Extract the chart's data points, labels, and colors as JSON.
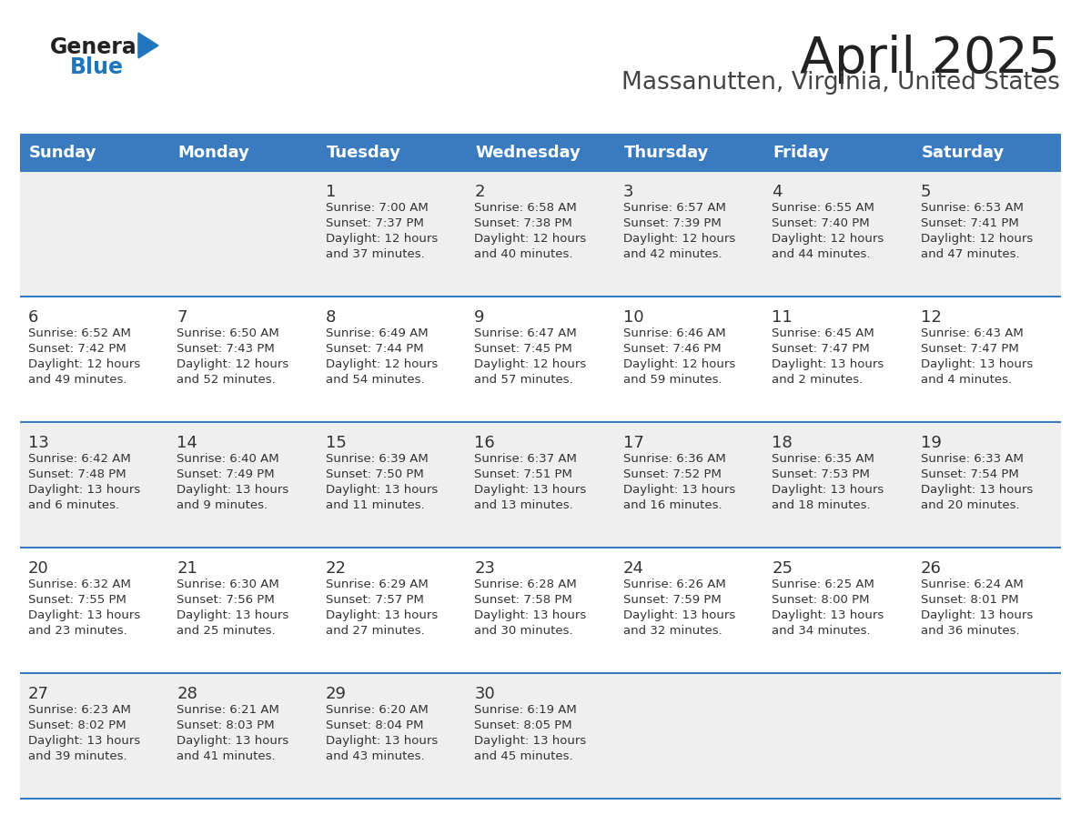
{
  "title": "April 2025",
  "subtitle": "Massanutten, Virginia, United States",
  "header_color": "#3A7BBF",
  "header_text_color": "#FFFFFF",
  "days_of_week": [
    "Sunday",
    "Monday",
    "Tuesday",
    "Wednesday",
    "Thursday",
    "Friday",
    "Saturday"
  ],
  "row_bg_even": "#EFEFEF",
  "row_bg_odd": "#FFFFFF",
  "separator_color": "#3A7BBF",
  "text_color": "#333333",
  "calendar_data": [
    [
      {
        "day": "",
        "lines": []
      },
      {
        "day": "",
        "lines": []
      },
      {
        "day": "1",
        "lines": [
          "Sunrise: 7:00 AM",
          "Sunset: 7:37 PM",
          "Daylight: 12 hours",
          "and 37 minutes."
        ]
      },
      {
        "day": "2",
        "lines": [
          "Sunrise: 6:58 AM",
          "Sunset: 7:38 PM",
          "Daylight: 12 hours",
          "and 40 minutes."
        ]
      },
      {
        "day": "3",
        "lines": [
          "Sunrise: 6:57 AM",
          "Sunset: 7:39 PM",
          "Daylight: 12 hours",
          "and 42 minutes."
        ]
      },
      {
        "day": "4",
        "lines": [
          "Sunrise: 6:55 AM",
          "Sunset: 7:40 PM",
          "Daylight: 12 hours",
          "and 44 minutes."
        ]
      },
      {
        "day": "5",
        "lines": [
          "Sunrise: 6:53 AM",
          "Sunset: 7:41 PM",
          "Daylight: 12 hours",
          "and 47 minutes."
        ]
      }
    ],
    [
      {
        "day": "6",
        "lines": [
          "Sunrise: 6:52 AM",
          "Sunset: 7:42 PM",
          "Daylight: 12 hours",
          "and 49 minutes."
        ]
      },
      {
        "day": "7",
        "lines": [
          "Sunrise: 6:50 AM",
          "Sunset: 7:43 PM",
          "Daylight: 12 hours",
          "and 52 minutes."
        ]
      },
      {
        "day": "8",
        "lines": [
          "Sunrise: 6:49 AM",
          "Sunset: 7:44 PM",
          "Daylight: 12 hours",
          "and 54 minutes."
        ]
      },
      {
        "day": "9",
        "lines": [
          "Sunrise: 6:47 AM",
          "Sunset: 7:45 PM",
          "Daylight: 12 hours",
          "and 57 minutes."
        ]
      },
      {
        "day": "10",
        "lines": [
          "Sunrise: 6:46 AM",
          "Sunset: 7:46 PM",
          "Daylight: 12 hours",
          "and 59 minutes."
        ]
      },
      {
        "day": "11",
        "lines": [
          "Sunrise: 6:45 AM",
          "Sunset: 7:47 PM",
          "Daylight: 13 hours",
          "and 2 minutes."
        ]
      },
      {
        "day": "12",
        "lines": [
          "Sunrise: 6:43 AM",
          "Sunset: 7:47 PM",
          "Daylight: 13 hours",
          "and 4 minutes."
        ]
      }
    ],
    [
      {
        "day": "13",
        "lines": [
          "Sunrise: 6:42 AM",
          "Sunset: 7:48 PM",
          "Daylight: 13 hours",
          "and 6 minutes."
        ]
      },
      {
        "day": "14",
        "lines": [
          "Sunrise: 6:40 AM",
          "Sunset: 7:49 PM",
          "Daylight: 13 hours",
          "and 9 minutes."
        ]
      },
      {
        "day": "15",
        "lines": [
          "Sunrise: 6:39 AM",
          "Sunset: 7:50 PM",
          "Daylight: 13 hours",
          "and 11 minutes."
        ]
      },
      {
        "day": "16",
        "lines": [
          "Sunrise: 6:37 AM",
          "Sunset: 7:51 PM",
          "Daylight: 13 hours",
          "and 13 minutes."
        ]
      },
      {
        "day": "17",
        "lines": [
          "Sunrise: 6:36 AM",
          "Sunset: 7:52 PM",
          "Daylight: 13 hours",
          "and 16 minutes."
        ]
      },
      {
        "day": "18",
        "lines": [
          "Sunrise: 6:35 AM",
          "Sunset: 7:53 PM",
          "Daylight: 13 hours",
          "and 18 minutes."
        ]
      },
      {
        "day": "19",
        "lines": [
          "Sunrise: 6:33 AM",
          "Sunset: 7:54 PM",
          "Daylight: 13 hours",
          "and 20 minutes."
        ]
      }
    ],
    [
      {
        "day": "20",
        "lines": [
          "Sunrise: 6:32 AM",
          "Sunset: 7:55 PM",
          "Daylight: 13 hours",
          "and 23 minutes."
        ]
      },
      {
        "day": "21",
        "lines": [
          "Sunrise: 6:30 AM",
          "Sunset: 7:56 PM",
          "Daylight: 13 hours",
          "and 25 minutes."
        ]
      },
      {
        "day": "22",
        "lines": [
          "Sunrise: 6:29 AM",
          "Sunset: 7:57 PM",
          "Daylight: 13 hours",
          "and 27 minutes."
        ]
      },
      {
        "day": "23",
        "lines": [
          "Sunrise: 6:28 AM",
          "Sunset: 7:58 PM",
          "Daylight: 13 hours",
          "and 30 minutes."
        ]
      },
      {
        "day": "24",
        "lines": [
          "Sunrise: 6:26 AM",
          "Sunset: 7:59 PM",
          "Daylight: 13 hours",
          "and 32 minutes."
        ]
      },
      {
        "day": "25",
        "lines": [
          "Sunrise: 6:25 AM",
          "Sunset: 8:00 PM",
          "Daylight: 13 hours",
          "and 34 minutes."
        ]
      },
      {
        "day": "26",
        "lines": [
          "Sunrise: 6:24 AM",
          "Sunset: 8:01 PM",
          "Daylight: 13 hours",
          "and 36 minutes."
        ]
      }
    ],
    [
      {
        "day": "27",
        "lines": [
          "Sunrise: 6:23 AM",
          "Sunset: 8:02 PM",
          "Daylight: 13 hours",
          "and 39 minutes."
        ]
      },
      {
        "day": "28",
        "lines": [
          "Sunrise: 6:21 AM",
          "Sunset: 8:03 PM",
          "Daylight: 13 hours",
          "and 41 minutes."
        ]
      },
      {
        "day": "29",
        "lines": [
          "Sunrise: 6:20 AM",
          "Sunset: 8:04 PM",
          "Daylight: 13 hours",
          "and 43 minutes."
        ]
      },
      {
        "day": "30",
        "lines": [
          "Sunrise: 6:19 AM",
          "Sunset: 8:05 PM",
          "Daylight: 13 hours",
          "and 45 minutes."
        ]
      },
      {
        "day": "",
        "lines": []
      },
      {
        "day": "",
        "lines": []
      },
      {
        "day": "",
        "lines": []
      }
    ]
  ],
  "logo_general_color": "#222222",
  "logo_blue_color": "#2175BC",
  "logo_triangle_color": "#2175BC"
}
